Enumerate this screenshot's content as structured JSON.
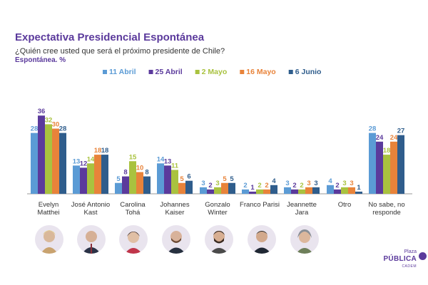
{
  "title": "Expectativa Presidencial Espontánea",
  "subtitle": "¿Quién cree usted que será el próximo presidente de Chile?",
  "note": "Espontánea. %",
  "logo": {
    "line1": "Plaza",
    "line2": "PÚBLICA",
    "line3": "CADEM"
  },
  "colors": [
    "#5b9bd5",
    "#5b3a9c",
    "#a9c23f",
    "#e8833a",
    "#2f5d8c"
  ],
  "chart_data": {
    "type": "bar",
    "title": "Expectativa Presidencial Espontánea",
    "xlabel": "",
    "ylabel": "%",
    "ylim": [
      0,
      40
    ],
    "legend_position": "top",
    "categories": [
      [
        "Evelyn",
        "Matthei"
      ],
      [
        "José Antonio",
        "Kast"
      ],
      [
        "Carolina",
        "Tohá"
      ],
      [
        "Johannes",
        "Kaiser"
      ],
      [
        "Gonzalo",
        "Winter"
      ],
      [
        "Franco Parisi"
      ],
      [
        "Jeannette",
        "Jara"
      ],
      [
        "Otro"
      ],
      [
        "No sabe, no",
        "responde"
      ]
    ],
    "series": [
      {
        "name": "11 Abril",
        "values": [
          28,
          13,
          5,
          14,
          3,
          2,
          3,
          4,
          28
        ]
      },
      {
        "name": "25 Abril",
        "values": [
          36,
          12,
          8,
          13,
          2,
          1,
          2,
          2,
          24
        ]
      },
      {
        "name": "2 Mayo",
        "values": [
          32,
          14,
          15,
          11,
          3,
          2,
          2,
          3,
          18
        ]
      },
      {
        "name": "16 Mayo",
        "values": [
          30,
          18,
          10,
          5,
          5,
          2,
          3,
          3,
          24
        ]
      },
      {
        "name": "6 Junio",
        "values": [
          28,
          18,
          8,
          6,
          5,
          4,
          3,
          1,
          27
        ]
      }
    ]
  }
}
